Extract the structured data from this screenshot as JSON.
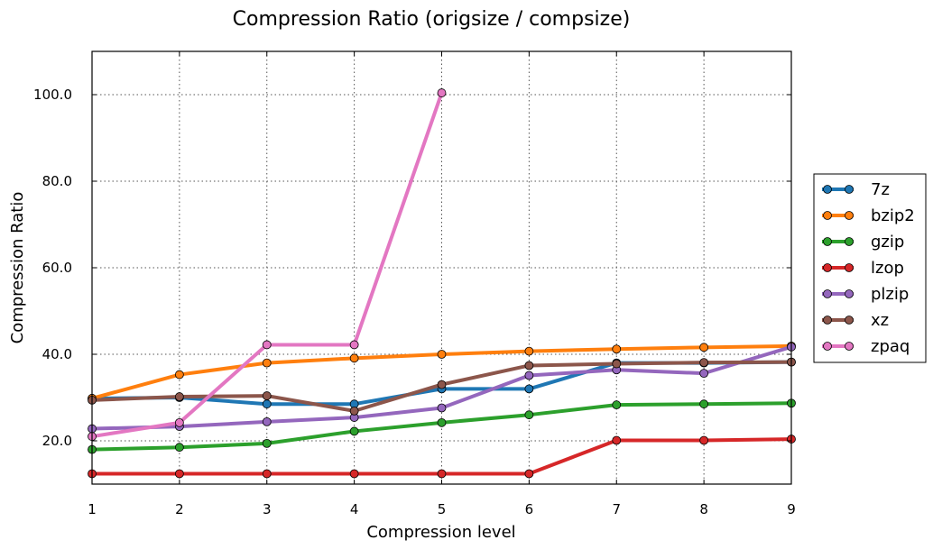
{
  "chart_data": {
    "type": "line",
    "title": "Compression Ratio (origsize / compsize)",
    "xlabel": "Compression level",
    "ylabel": "Compression Ratio",
    "x": [
      1,
      2,
      3,
      4,
      5,
      6,
      7,
      8,
      9
    ],
    "xlim": [
      1,
      9
    ],
    "ylim": [
      10,
      110
    ],
    "xticks": [
      "1",
      "2",
      "3",
      "4",
      "5",
      "6",
      "7",
      "8",
      "9"
    ],
    "yticks": [
      20,
      40,
      60,
      80,
      100
    ],
    "ytick_labels": [
      "20.0",
      "40.0",
      "60.0",
      "80.0",
      "100.0"
    ],
    "grid": true,
    "legend_position": "right, outside plot",
    "series": [
      {
        "name": "7z",
        "color": "#1f77b4",
        "values": [
          29.8,
          30.0,
          28.5,
          28.5,
          32.0,
          32.0,
          38.0,
          38.0,
          38.2
        ]
      },
      {
        "name": "bzip2",
        "color": "#ff7f0e",
        "values": [
          29.8,
          35.3,
          38.0,
          39.1,
          40.0,
          40.7,
          41.2,
          41.6,
          41.9
        ]
      },
      {
        "name": "gzip",
        "color": "#2ca02c",
        "values": [
          18.0,
          18.5,
          19.4,
          22.2,
          24.2,
          26.0,
          28.3,
          28.5,
          28.7
        ]
      },
      {
        "name": "lzop",
        "color": "#d62728",
        "values": [
          12.4,
          12.4,
          12.4,
          12.4,
          12.4,
          12.4,
          20.1,
          20.1,
          20.4
        ]
      },
      {
        "name": "plzip",
        "color": "#9467bd",
        "values": [
          22.8,
          23.3,
          24.4,
          25.4,
          27.6,
          35.1,
          36.4,
          35.6,
          41.7
        ]
      },
      {
        "name": "xz",
        "color": "#8c564b",
        "values": [
          29.4,
          30.2,
          30.4,
          26.9,
          33.0,
          37.4,
          37.8,
          38.1,
          38.2
        ]
      },
      {
        "name": "zpaq",
        "color": "#e377c2",
        "values": [
          21.0,
          24.2,
          42.2,
          42.2,
          100.4,
          null,
          null,
          null,
          null
        ]
      }
    ]
  }
}
